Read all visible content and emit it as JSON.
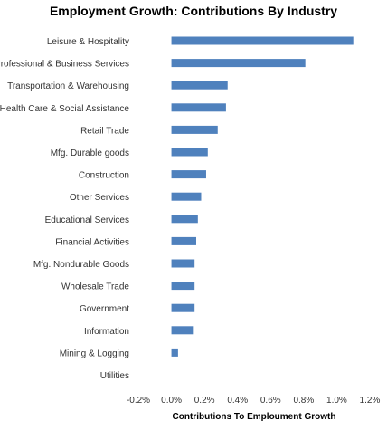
{
  "chart_data": {
    "type": "bar",
    "orientation": "horizontal",
    "title": "Employment Growth: Contributions By Industry",
    "xlabel": "Contributions To Emploument Growth",
    "ylabel": "",
    "xlim": [
      -0.2,
      1.2
    ],
    "x_ticks": [
      "-0.2%",
      "0.0%",
      "0.2%",
      "0.4%",
      "0.6%",
      "0.8%",
      "1.0%",
      "1.2%"
    ],
    "grid": false,
    "legend": "none",
    "bar_color": "#4F81BD",
    "categories": [
      "Leisure & Hospitality",
      "Professional & Business Services",
      "Transportation & Warehousing",
      "Health Care & Social Assistance",
      "Retail Trade",
      "Mfg. Durable goods",
      "Construction",
      "Other Services",
      "Educational Services",
      "Financial Activities",
      "Mfg. Nondurable Goods",
      "Wholesale Trade",
      "Government",
      "Information",
      "Mining & Logging",
      "Utilities"
    ],
    "values": [
      1.1,
      0.81,
      0.34,
      0.33,
      0.28,
      0.22,
      0.21,
      0.18,
      0.16,
      0.15,
      0.14,
      0.14,
      0.14,
      0.13,
      0.04,
      0.0
    ],
    "units": "%"
  }
}
